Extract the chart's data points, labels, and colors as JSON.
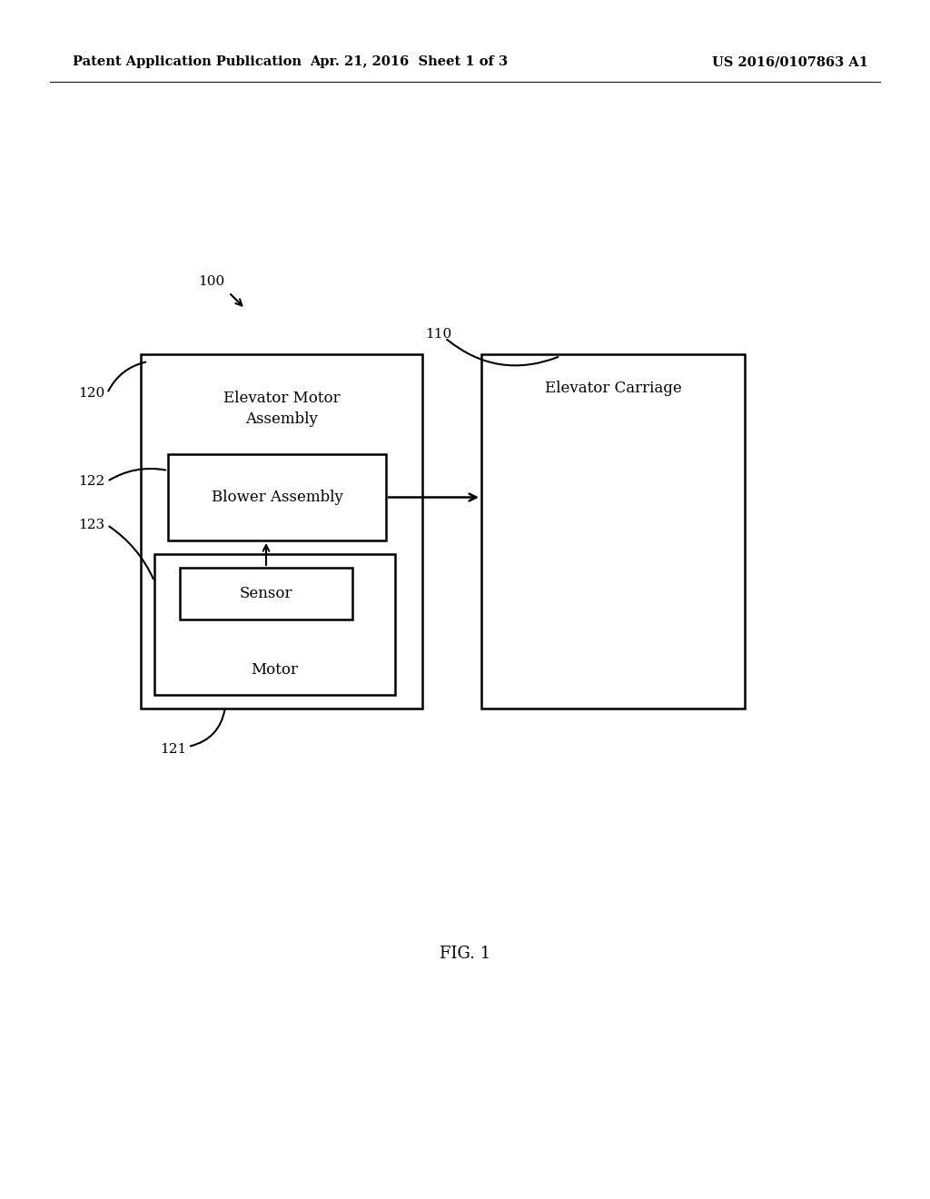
{
  "background_color": "#ffffff",
  "header_left": "Patent Application Publication",
  "header_center": "Apr. 21, 2016  Sheet 1 of 3",
  "header_right": "US 2016/0107863 A1",
  "header_fontsize": 10.5,
  "fig_label": "FIG. 1",
  "fig_label_fontsize": 13,
  "label_100": "100",
  "label_110": "110",
  "label_120": "120",
  "label_121": "121",
  "label_122": "122",
  "label_123": "123",
  "text_color": "#000000",
  "line_color": "#000000"
}
